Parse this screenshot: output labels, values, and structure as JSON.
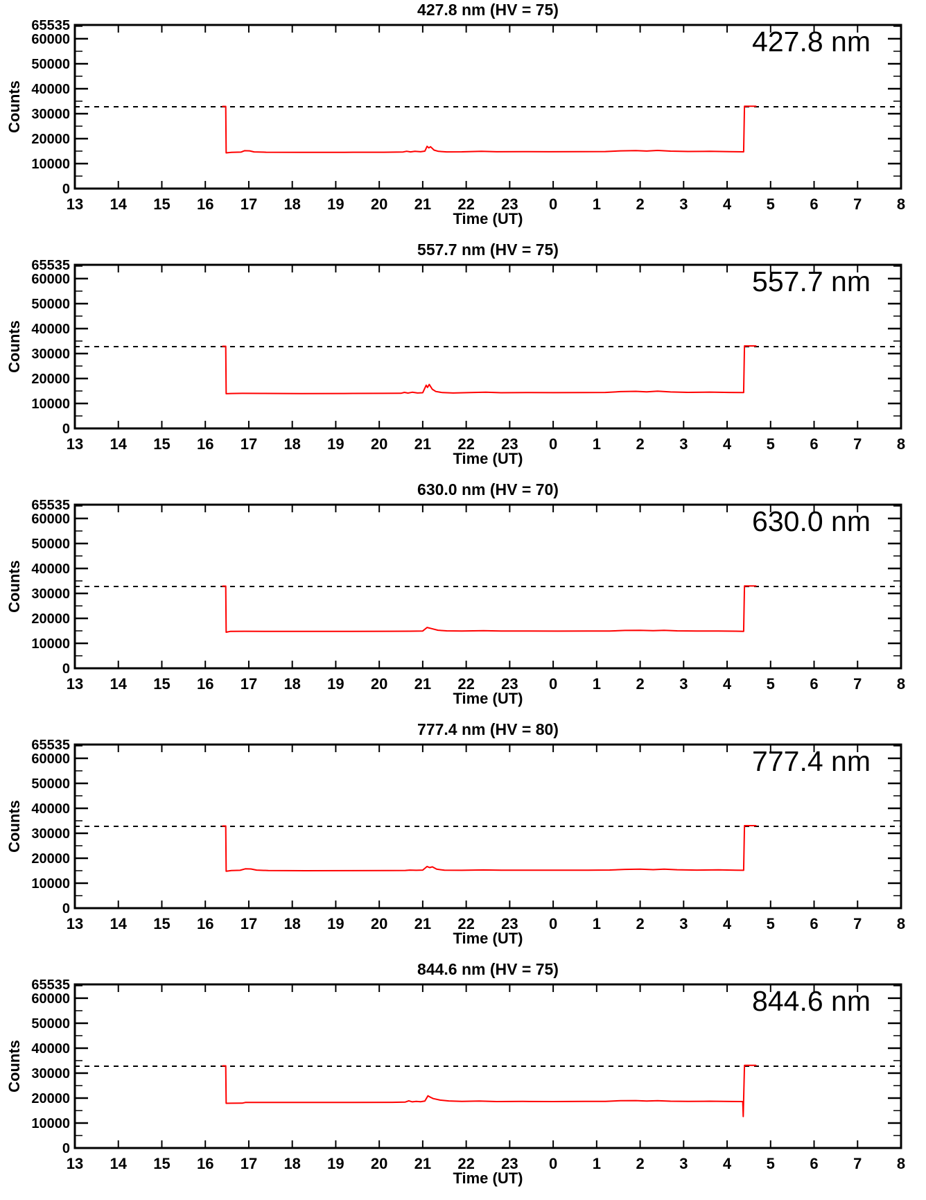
{
  "page": {
    "background": "#ffffff",
    "foreground": "#000000"
  },
  "chart_data": {
    "type": "line",
    "axes": {
      "xlabel": "Time (UT)",
      "ylabel": "Counts",
      "xlim": [
        13,
        32
      ],
      "ylim": [
        0,
        65535
      ],
      "x_ticks": [
        {
          "t": 13,
          "label": "13"
        },
        {
          "t": 14,
          "label": "14"
        },
        {
          "t": 15,
          "label": "15"
        },
        {
          "t": 16,
          "label": "16"
        },
        {
          "t": 17,
          "label": "17"
        },
        {
          "t": 18,
          "label": "18"
        },
        {
          "t": 19,
          "label": "19"
        },
        {
          "t": 20,
          "label": "20"
        },
        {
          "t": 21,
          "label": "21"
        },
        {
          "t": 22,
          "label": "22"
        },
        {
          "t": 23,
          "label": "23"
        },
        {
          "t": 24,
          "label": "0"
        },
        {
          "t": 25,
          "label": "1"
        },
        {
          "t": 26,
          "label": "2"
        },
        {
          "t": 27,
          "label": "3"
        },
        {
          "t": 28,
          "label": "4"
        },
        {
          "t": 29,
          "label": "5"
        },
        {
          "t": 30,
          "label": "6"
        },
        {
          "t": 31,
          "label": "7"
        },
        {
          "t": 32,
          "label": "8"
        }
      ],
      "y_major_ticks": [
        {
          "v": 0,
          "label": "0"
        },
        {
          "v": 10000,
          "label": "10000"
        },
        {
          "v": 20000,
          "label": "20000"
        },
        {
          "v": 30000,
          "label": "30000"
        },
        {
          "v": 40000,
          "label": "40000"
        },
        {
          "v": 50000,
          "label": "50000"
        },
        {
          "v": 60000,
          "label": "60000"
        },
        {
          "v": 65535,
          "label": "65535"
        }
      ],
      "y_minor_step": 5000,
      "threshold_line": 32768,
      "grid": "off",
      "legend": "none"
    },
    "panels": [
      {
        "title": "427.8 nm (HV = 75)",
        "corner_label": "427.8 nm",
        "wavelength_nm": 427.8,
        "hv": 75,
        "line_color": "#ff0000",
        "points": [
          [
            16.4,
            32900
          ],
          [
            16.47,
            32900
          ],
          [
            16.48,
            14300
          ],
          [
            16.6,
            14500
          ],
          [
            16.82,
            14600
          ],
          [
            16.9,
            15150
          ],
          [
            17.02,
            15100
          ],
          [
            17.12,
            14700
          ],
          [
            17.4,
            14550
          ],
          [
            18.2,
            14500
          ],
          [
            19.2,
            14520
          ],
          [
            20.1,
            14560
          ],
          [
            20.55,
            14650
          ],
          [
            20.63,
            14950
          ],
          [
            20.72,
            14700
          ],
          [
            20.82,
            14950
          ],
          [
            20.95,
            14750
          ],
          [
            21.05,
            15000
          ],
          [
            21.1,
            16900
          ],
          [
            21.14,
            16300
          ],
          [
            21.18,
            16750
          ],
          [
            21.26,
            15400
          ],
          [
            21.36,
            14900
          ],
          [
            21.55,
            14700
          ],
          [
            21.9,
            14720
          ],
          [
            22.35,
            14950
          ],
          [
            22.7,
            14750
          ],
          [
            23.3,
            14800
          ],
          [
            23.9,
            14740
          ],
          [
            24.6,
            14780
          ],
          [
            25.2,
            14820
          ],
          [
            25.55,
            15120
          ],
          [
            25.9,
            15220
          ],
          [
            26.15,
            15020
          ],
          [
            26.4,
            15280
          ],
          [
            26.7,
            15000
          ],
          [
            27.1,
            14850
          ],
          [
            27.6,
            14920
          ],
          [
            28.05,
            14780
          ],
          [
            28.38,
            14720
          ],
          [
            28.4,
            33000
          ],
          [
            28.66,
            33000
          ]
        ]
      },
      {
        "title": "557.7 nm (HV = 75)",
        "corner_label": "557.7 nm",
        "wavelength_nm": 557.7,
        "hv": 75,
        "line_color": "#ff0000",
        "points": [
          [
            16.4,
            32900
          ],
          [
            16.47,
            32900
          ],
          [
            16.48,
            13900
          ],
          [
            16.6,
            14000
          ],
          [
            16.85,
            14050
          ],
          [
            17.3,
            14020
          ],
          [
            18.2,
            13980
          ],
          [
            19.2,
            14000
          ],
          [
            20.1,
            14050
          ],
          [
            20.5,
            14080
          ],
          [
            20.58,
            14450
          ],
          [
            20.66,
            14150
          ],
          [
            20.76,
            14500
          ],
          [
            20.88,
            14200
          ],
          [
            21.0,
            14300
          ],
          [
            21.08,
            17300
          ],
          [
            21.11,
            16400
          ],
          [
            21.15,
            17600
          ],
          [
            21.22,
            15700
          ],
          [
            21.3,
            14800
          ],
          [
            21.45,
            14350
          ],
          [
            21.7,
            14200
          ],
          [
            22.1,
            14350
          ],
          [
            22.45,
            14500
          ],
          [
            22.8,
            14300
          ],
          [
            23.4,
            14380
          ],
          [
            24.0,
            14320
          ],
          [
            24.7,
            14380
          ],
          [
            25.2,
            14420
          ],
          [
            25.55,
            14750
          ],
          [
            25.9,
            14850
          ],
          [
            26.15,
            14650
          ],
          [
            26.4,
            14900
          ],
          [
            26.7,
            14600
          ],
          [
            27.1,
            14450
          ],
          [
            27.6,
            14550
          ],
          [
            28.05,
            14400
          ],
          [
            28.38,
            14380
          ],
          [
            28.4,
            33050
          ],
          [
            28.66,
            33050
          ]
        ]
      },
      {
        "title": "630.0 nm (HV = 70)",
        "corner_label": "630.0 nm",
        "wavelength_nm": 630.0,
        "hv": 70,
        "line_color": "#ff0000",
        "points": [
          [
            16.4,
            32900
          ],
          [
            16.47,
            32900
          ],
          [
            16.48,
            14450
          ],
          [
            16.58,
            14800
          ],
          [
            16.9,
            14820
          ],
          [
            17.4,
            14800
          ],
          [
            18.3,
            14780
          ],
          [
            19.3,
            14800
          ],
          [
            20.2,
            14820
          ],
          [
            20.7,
            14850
          ],
          [
            21.0,
            14950
          ],
          [
            21.1,
            16350
          ],
          [
            21.2,
            15900
          ],
          [
            21.35,
            15250
          ],
          [
            21.55,
            15000
          ],
          [
            21.9,
            14900
          ],
          [
            22.4,
            15050
          ],
          [
            22.8,
            14900
          ],
          [
            23.4,
            14920
          ],
          [
            24.1,
            14880
          ],
          [
            24.8,
            14920
          ],
          [
            25.3,
            14950
          ],
          [
            25.65,
            15150
          ],
          [
            26.0,
            15200
          ],
          [
            26.3,
            15050
          ],
          [
            26.55,
            15200
          ],
          [
            26.85,
            15000
          ],
          [
            27.3,
            14920
          ],
          [
            27.8,
            14950
          ],
          [
            28.2,
            14850
          ],
          [
            28.38,
            14800
          ],
          [
            28.4,
            33000
          ],
          [
            28.66,
            33000
          ]
        ]
      },
      {
        "title": "777.4 nm (HV = 80)",
        "corner_label": "777.4 nm",
        "wavelength_nm": 777.4,
        "hv": 80,
        "line_color": "#ff0000",
        "points": [
          [
            16.4,
            32900
          ],
          [
            16.47,
            32900
          ],
          [
            16.48,
            14800
          ],
          [
            16.6,
            15050
          ],
          [
            16.8,
            15150
          ],
          [
            16.92,
            15750
          ],
          [
            17.05,
            15700
          ],
          [
            17.18,
            15250
          ],
          [
            17.45,
            15050
          ],
          [
            18.3,
            15000
          ],
          [
            19.3,
            15020
          ],
          [
            20.2,
            15060
          ],
          [
            20.6,
            15100
          ],
          [
            20.7,
            15250
          ],
          [
            20.85,
            15150
          ],
          [
            21.0,
            15250
          ],
          [
            21.1,
            16700
          ],
          [
            21.16,
            16250
          ],
          [
            21.22,
            16550
          ],
          [
            21.32,
            15600
          ],
          [
            21.5,
            15200
          ],
          [
            21.9,
            15150
          ],
          [
            22.4,
            15300
          ],
          [
            22.8,
            15180
          ],
          [
            23.4,
            15220
          ],
          [
            24.1,
            15180
          ],
          [
            24.8,
            15220
          ],
          [
            25.3,
            15280
          ],
          [
            25.65,
            15520
          ],
          [
            26.0,
            15600
          ],
          [
            26.3,
            15420
          ],
          [
            26.55,
            15600
          ],
          [
            26.85,
            15380
          ],
          [
            27.3,
            15250
          ],
          [
            27.8,
            15320
          ],
          [
            28.2,
            15180
          ],
          [
            28.38,
            15150
          ],
          [
            28.4,
            33050
          ],
          [
            28.66,
            33050
          ]
        ]
      },
      {
        "title": "844.6 nm (HV = 75)",
        "corner_label": "844.6 nm",
        "wavelength_nm": 844.6,
        "hv": 75,
        "line_color": "#ff0000",
        "points": [
          [
            16.4,
            32900
          ],
          [
            16.47,
            32900
          ],
          [
            16.48,
            17900
          ],
          [
            16.6,
            17950
          ],
          [
            16.85,
            17980
          ],
          [
            16.92,
            18250
          ],
          [
            17.1,
            18280
          ],
          [
            17.6,
            18260
          ],
          [
            18.4,
            18240
          ],
          [
            19.4,
            18260
          ],
          [
            20.3,
            18300
          ],
          [
            20.6,
            18400
          ],
          [
            20.68,
            18900
          ],
          [
            20.76,
            18500
          ],
          [
            20.85,
            18700
          ],
          [
            20.95,
            18550
          ],
          [
            21.05,
            18800
          ],
          [
            21.12,
            20900
          ],
          [
            21.18,
            20300
          ],
          [
            21.24,
            19800
          ],
          [
            21.4,
            19200
          ],
          [
            21.6,
            18850
          ],
          [
            21.9,
            18650
          ],
          [
            22.3,
            18800
          ],
          [
            22.7,
            18600
          ],
          [
            23.3,
            18650
          ],
          [
            24.0,
            18600
          ],
          [
            24.7,
            18650
          ],
          [
            25.2,
            18700
          ],
          [
            25.55,
            18950
          ],
          [
            25.9,
            19000
          ],
          [
            26.15,
            18820
          ],
          [
            26.4,
            18980
          ],
          [
            26.7,
            18750
          ],
          [
            27.1,
            18650
          ],
          [
            27.6,
            18750
          ],
          [
            28.1,
            18620
          ],
          [
            28.36,
            18600
          ],
          [
            28.37,
            12600
          ],
          [
            28.4,
            33100
          ],
          [
            28.66,
            33100
          ]
        ]
      }
    ]
  }
}
